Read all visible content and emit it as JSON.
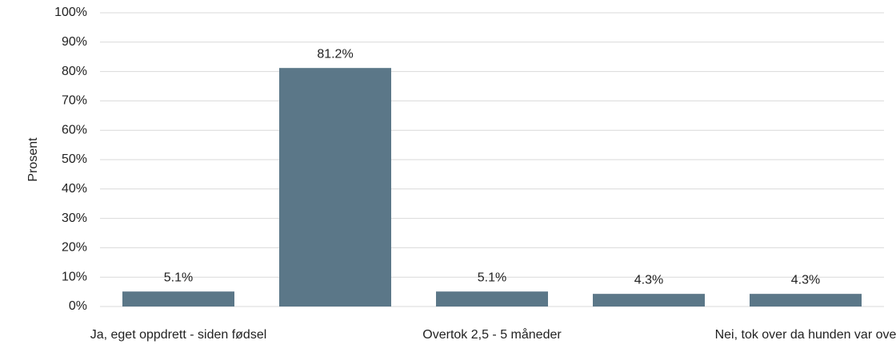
{
  "chart_data": {
    "type": "bar",
    "y_label": "Prosent",
    "categories": [
      "Ja, eget oppdrett - siden fødsel",
      null,
      "Overtok 2,5 - 5 måneder",
      null,
      "Nei, tok over da hunden var ove"
    ],
    "values": [
      5.1,
      81.2,
      5.1,
      4.3,
      4.3
    ],
    "value_labels": [
      "5.1%",
      "81.2%",
      "5.1%",
      "4.3%",
      "4.3%"
    ],
    "color": "#5b7788",
    "ylim": [
      0,
      100
    ],
    "yticks": [
      {
        "value": 0,
        "label": "0%"
      },
      {
        "value": 10,
        "label": "10%"
      },
      {
        "value": 20,
        "label": "20%"
      },
      {
        "value": 30,
        "label": "30%"
      },
      {
        "value": 40,
        "label": "40%"
      },
      {
        "value": 50,
        "label": "50%"
      },
      {
        "value": 60,
        "label": "60%"
      },
      {
        "value": 70,
        "label": "70%"
      },
      {
        "value": 80,
        "label": "80%"
      },
      {
        "value": 90,
        "label": "90%"
      },
      {
        "value": 100,
        "label": "100%"
      }
    ],
    "grid": true
  }
}
